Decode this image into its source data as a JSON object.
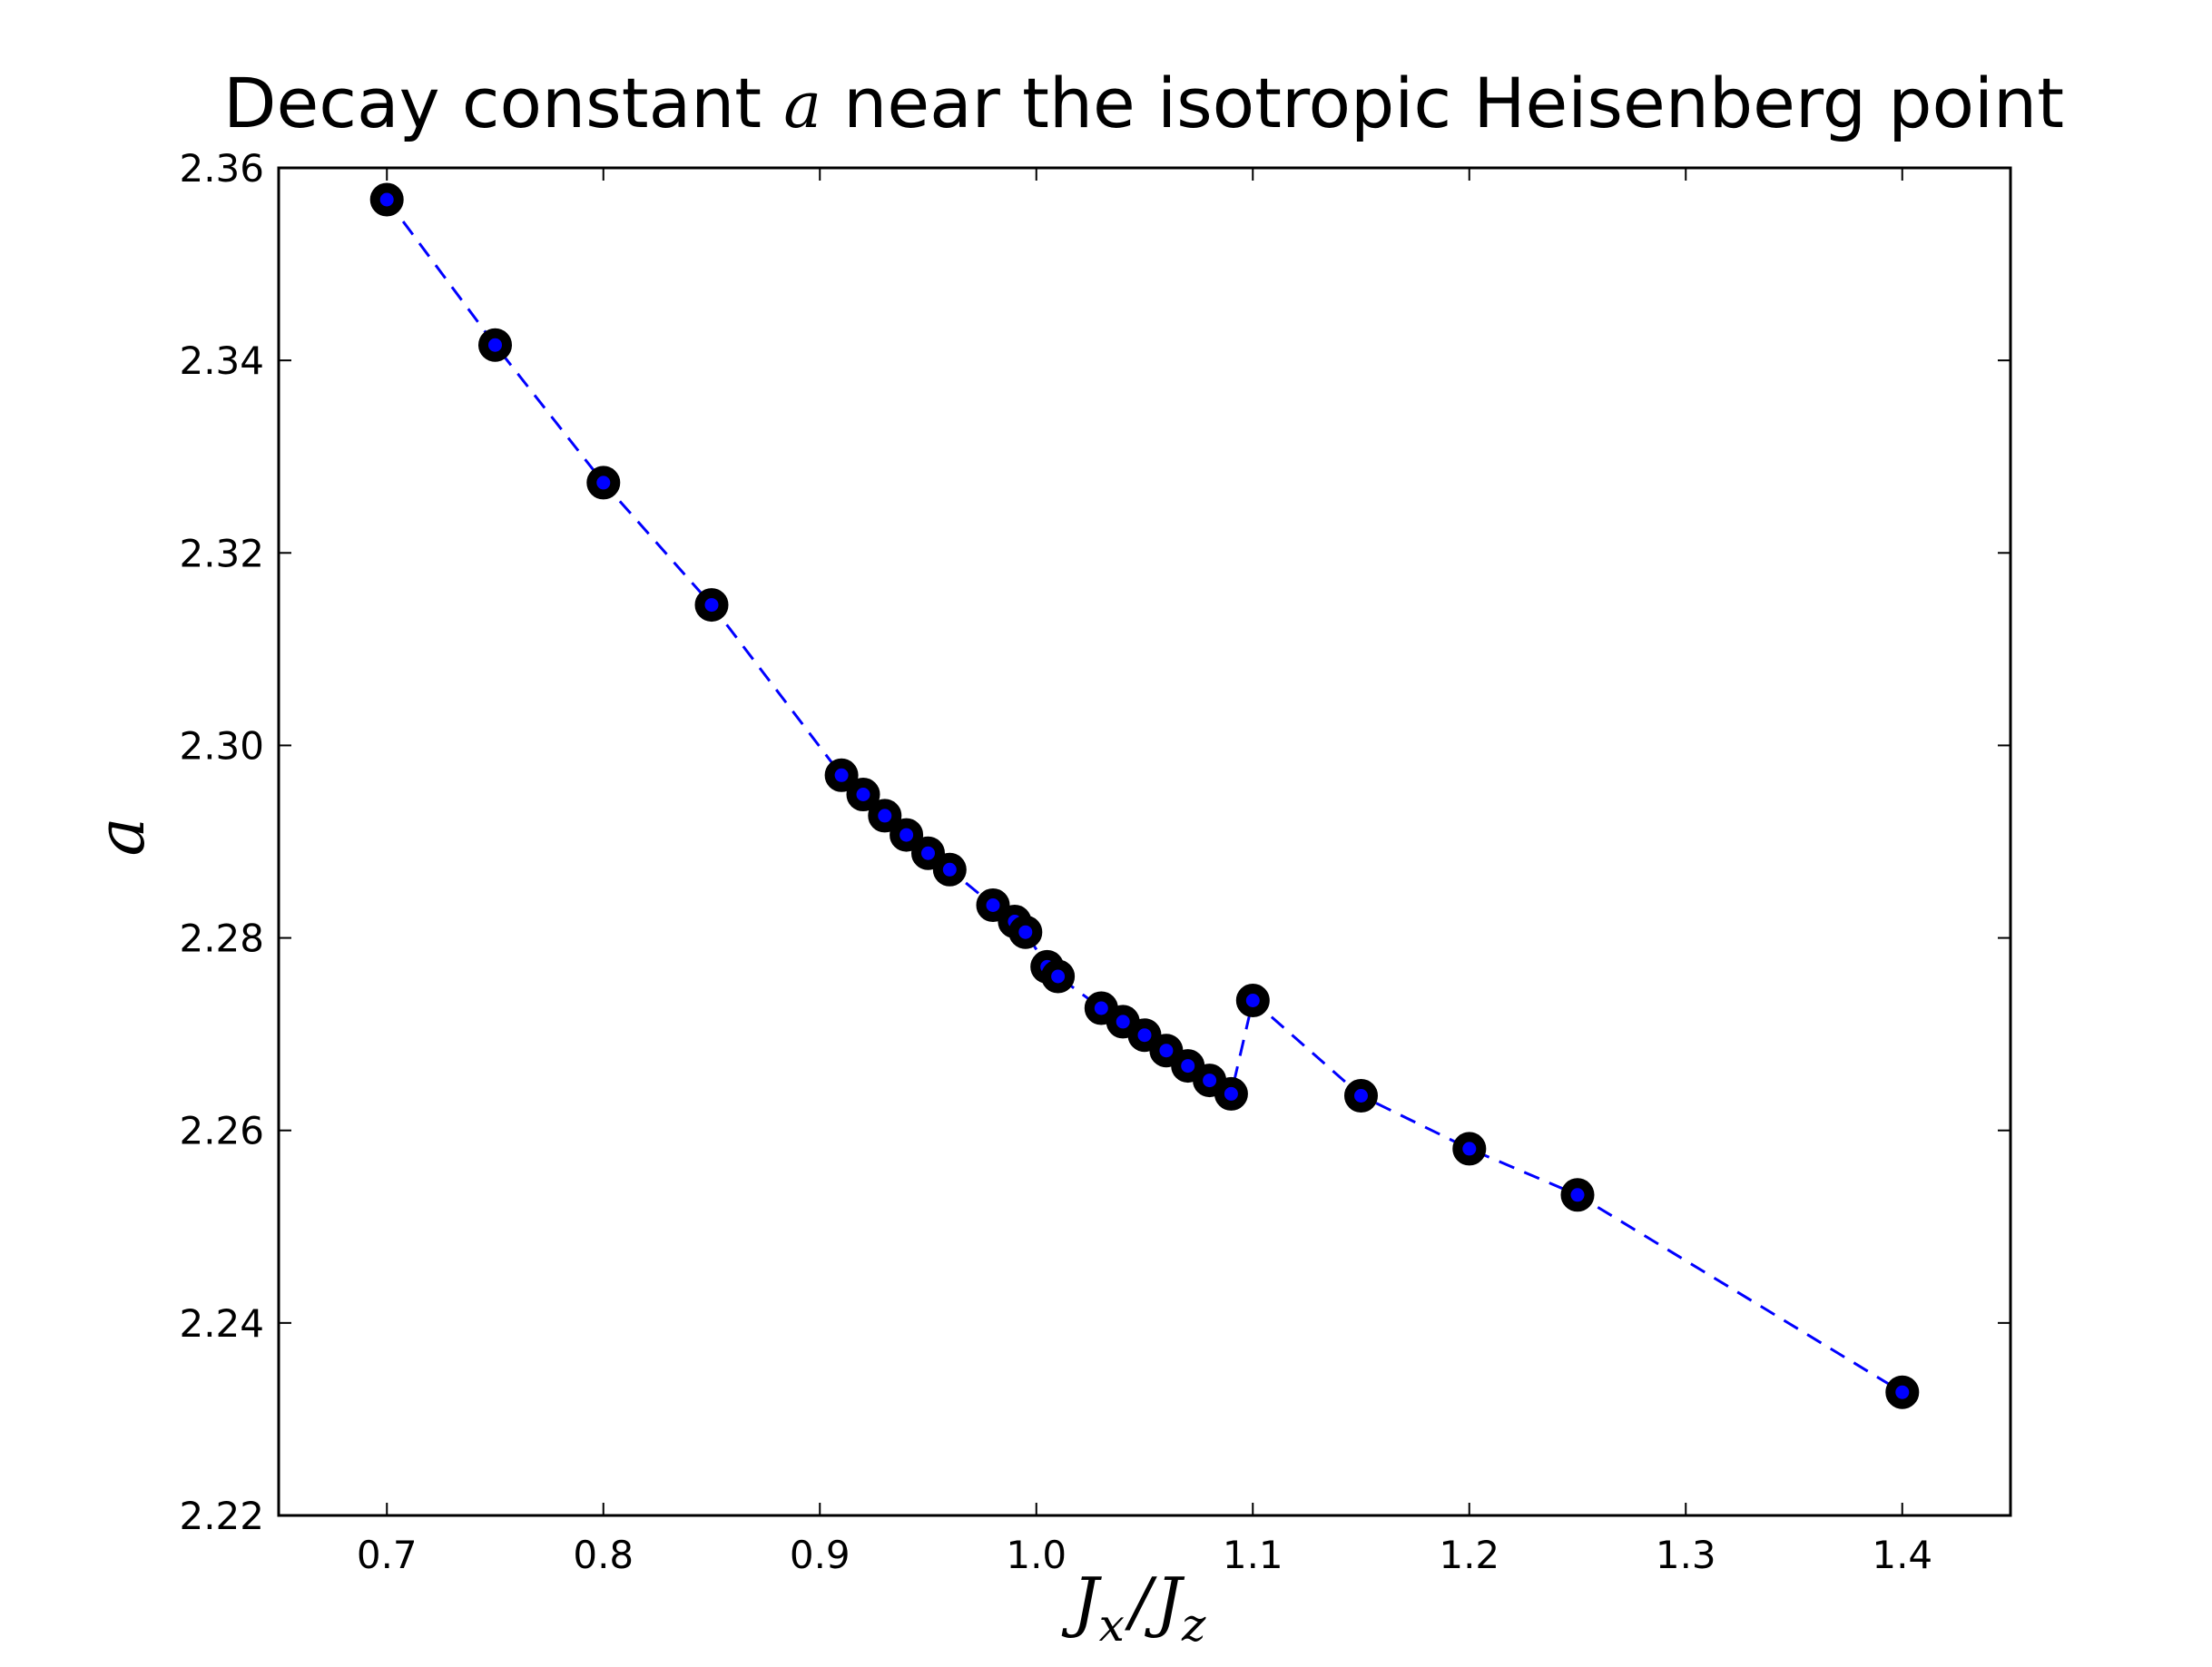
{
  "chart_data": {
    "type": "scatter",
    "title": {
      "prefix": "Decay constant ",
      "math": "a",
      "suffix": " near the isotropic Heisenberg point"
    },
    "xlabel": {
      "J1": "J",
      "sub1": "x",
      "slash": "/",
      "J2": "J",
      "sub2": "z"
    },
    "ylabel": "a",
    "xlim": [
      0.65,
      1.45
    ],
    "ylim": [
      2.22,
      2.36
    ],
    "xticks": [
      "0.7",
      "0.8",
      "0.9",
      "1.0",
      "1.1",
      "1.2",
      "1.3",
      "1.4"
    ],
    "yticks": [
      "2.22",
      "2.24",
      "2.26",
      "2.28",
      "2.30",
      "2.32",
      "2.34",
      "2.36"
    ],
    "grid": false,
    "line_style": "dashed",
    "line_color": "#0000ff",
    "marker_edge_color": "#000000",
    "marker_face_color": "#0000ff",
    "x": [
      0.7,
      0.75,
      0.8,
      0.85,
      0.91,
      0.92,
      0.93,
      0.94,
      0.95,
      0.96,
      0.98,
      0.99,
      0.995,
      1.005,
      1.01,
      1.03,
      1.04,
      1.05,
      1.06,
      1.07,
      1.08,
      1.09,
      1.1,
      1.15,
      1.2,
      1.25,
      1.4
    ],
    "y": [
      2.3567,
      2.3416,
      2.3273,
      2.3146,
      2.2969,
      2.2949,
      2.2927,
      2.2907,
      2.2888,
      2.2871,
      2.2834,
      2.2817,
      2.2806,
      2.277,
      2.276,
      2.2727,
      2.2713,
      2.2699,
      2.2683,
      2.2667,
      2.2652,
      2.2638,
      2.2735,
      2.2636,
      2.2581,
      2.2533,
      2.2328
    ]
  }
}
